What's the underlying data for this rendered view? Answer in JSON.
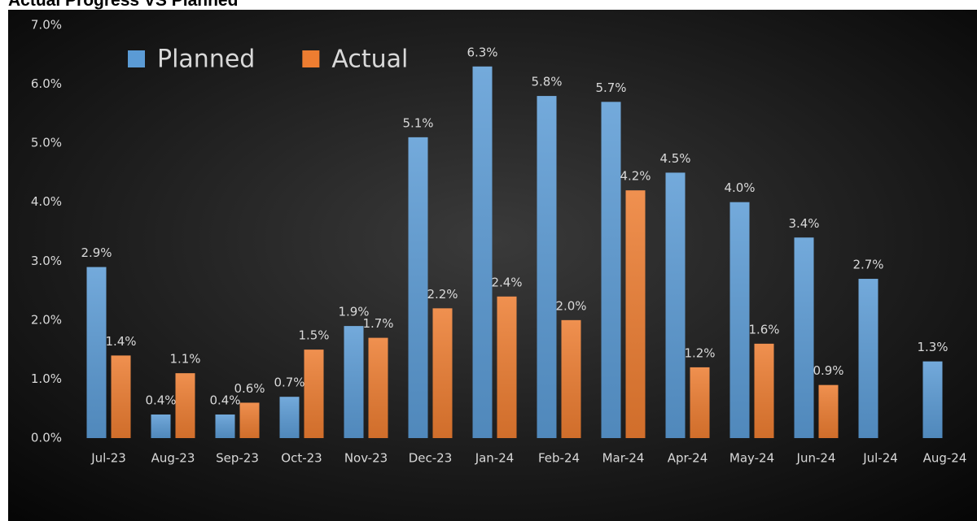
{
  "chart_data": {
    "type": "bar",
    "title": "Actual Progress VS Planned",
    "categories": [
      "Jul-23",
      "Aug-23",
      "Sep-23",
      "Oct-23",
      "Nov-23",
      "Dec-23",
      "Jan-24",
      "Feb-24",
      "Mar-24",
      "Apr-24",
      "May-24",
      "Jun-24",
      "Jul-24",
      "Aug-24"
    ],
    "series": [
      {
        "name": "Planned",
        "color": "#5b9bd5",
        "values": [
          2.9,
          0.4,
          0.4,
          0.7,
          1.9,
          5.1,
          6.3,
          5.8,
          5.7,
          4.5,
          4.0,
          3.4,
          2.7,
          1.3
        ],
        "value_labels": [
          "2.9%",
          "0.4%",
          "0.4%",
          "0.7%",
          "1.9%",
          "5.1%",
          "6.3%",
          "5.8%",
          "5.7%",
          "4.5%",
          "4.0%",
          "3.4%",
          "2.7%",
          "1.3%"
        ]
      },
      {
        "name": "Actual",
        "color": "#ed7d31",
        "values": [
          1.4,
          1.1,
          0.6,
          1.5,
          1.7,
          2.2,
          2.4,
          2.0,
          4.2,
          1.2,
          1.6,
          0.9,
          null,
          null
        ],
        "value_labels": [
          "1.4%",
          "1.1%",
          "0.6%",
          "1.5%",
          "1.7%",
          "2.2%",
          "2.4%",
          "2.0%",
          "4.2%",
          "1.2%",
          "1.6%",
          "0.9%",
          null,
          null
        ]
      }
    ],
    "ylim": [
      0,
      7
    ],
    "yticks": [
      {
        "value": 0,
        "label": "0.0%"
      },
      {
        "value": 1,
        "label": "1.0%"
      },
      {
        "value": 2,
        "label": "2.0%"
      },
      {
        "value": 3,
        "label": "3.0%"
      },
      {
        "value": 4,
        "label": "4.0%"
      },
      {
        "value": 5,
        "label": "5.0%"
      },
      {
        "value": 6,
        "label": "6.0%"
      },
      {
        "value": 7,
        "label": "7.0%"
      }
    ],
    "grid": false,
    "legend": "top-left"
  }
}
